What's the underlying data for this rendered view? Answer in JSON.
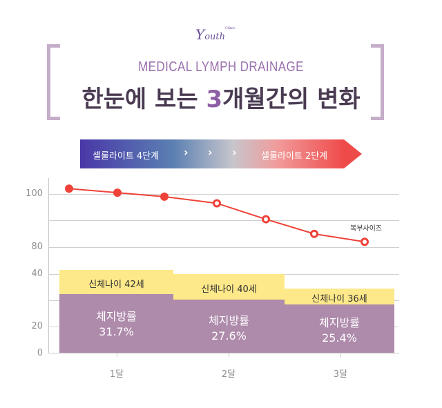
{
  "header": {
    "logo_text": "outh",
    "logo_sub": "Clinic",
    "subtitle": "MEDICAL LYMPH DRAINAGE",
    "title_pre": "한눈에 보는 ",
    "title_highlight": "3",
    "title_post": "개월간의 변화"
  },
  "banner": {
    "left_label": "셀룰라이트 4단계",
    "right_label": "셀룰라이트 2단계",
    "chevron": "›",
    "colors": [
      "#4a38a8",
      "#ef4a4a"
    ]
  },
  "chart_data": {
    "type": "bar+line",
    "y_ticks": [
      "100",
      "80",
      "40",
      "20",
      "0"
    ],
    "y_axis_break": "between 80 and 40",
    "grid": true,
    "categories": [
      "1달",
      "2달",
      "3달"
    ],
    "bars": [
      {
        "age_label": "신체나이 42세",
        "body_age": 42,
        "fat_label": "체지방률",
        "fat_value": "31.7%"
      },
      {
        "age_label": "신체나이 40세",
        "body_age": 40,
        "fat_label": "체지방률",
        "fat_value": "27.6%"
      },
      {
        "age_label": "신체나이 36세",
        "body_age": 36,
        "fat_label": "체지방률",
        "fat_value": "25.4%"
      }
    ],
    "line": {
      "name": "복부사이즈",
      "color": "#ef4238",
      "values": [
        102,
        100.5,
        99,
        96.5,
        90.5,
        85,
        82
      ],
      "filled": [
        true,
        true,
        true,
        false,
        false,
        false,
        false
      ]
    },
    "colors": {
      "bar_top": "#fde88a",
      "bar_body": "#ae8aab"
    }
  }
}
